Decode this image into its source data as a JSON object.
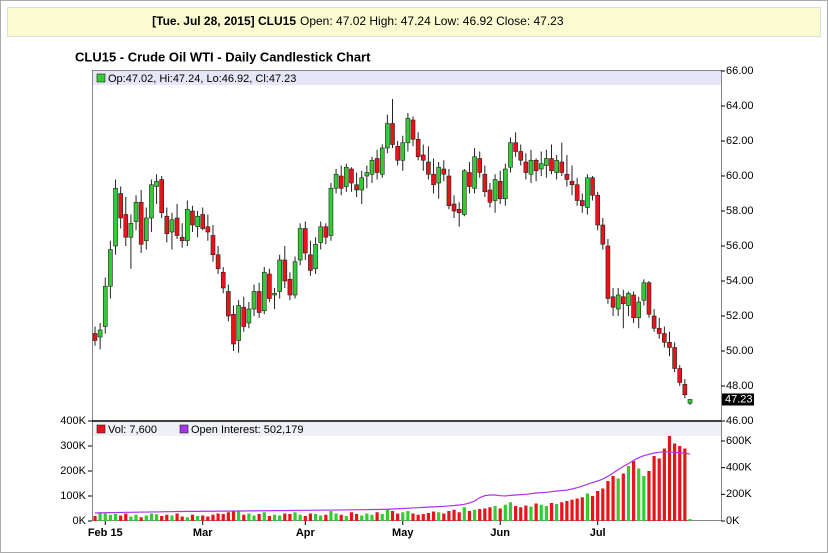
{
  "header": {
    "date_symbol": "[Tue. Jul 28, 2015] CLU15",
    "quote": "Open: 47.02 High: 47.24 Low: 46.92 Close: 47.23"
  },
  "chart_data": [
    {
      "type": "candlestick",
      "title": "CLU15 - Crude Oil WTI - Daily Candlestick Chart",
      "legend": "Op:47.02, Hi:47.24, Lo:46.92, Cl:47.23",
      "last_label": "47.23",
      "up_color": "#33cc33",
      "down_color": "#e8141a",
      "ylim": [
        46,
        66
      ],
      "yticks": [
        {
          "value": 46,
          "label": "46.00"
        },
        {
          "value": 48,
          "label": "48.00"
        },
        {
          "value": 50,
          "label": "50.00"
        },
        {
          "value": 52,
          "label": "52.00"
        },
        {
          "value": 54,
          "label": "54.00"
        },
        {
          "value": 56,
          "label": "56.00"
        },
        {
          "value": 58,
          "label": "58.00"
        },
        {
          "value": 60,
          "label": "60.00"
        },
        {
          "value": 62,
          "label": "62.00"
        },
        {
          "value": 64,
          "label": "64.00"
        },
        {
          "value": 66,
          "label": "66.00"
        }
      ],
      "candles": [
        [
          51.0,
          51.4,
          50.3,
          50.6
        ],
        [
          50.8,
          51.6,
          50.1,
          51.2
        ],
        [
          51.4,
          54.2,
          51.0,
          53.7
        ],
        [
          53.7,
          56.3,
          53.0,
          55.8
        ],
        [
          56.0,
          59.8,
          55.5,
          59.3
        ],
        [
          59.0,
          59.4,
          57.0,
          57.6
        ],
        [
          57.8,
          58.8,
          56.0,
          56.5
        ],
        [
          56.5,
          57.8,
          54.7,
          57.3
        ],
        [
          57.4,
          58.9,
          56.9,
          58.5
        ],
        [
          58.5,
          59.2,
          55.6,
          56.1
        ],
        [
          56.3,
          58.2,
          55.8,
          57.6
        ],
        [
          57.6,
          59.8,
          56.8,
          59.5
        ],
        [
          59.4,
          60.1,
          58.4,
          59.7
        ],
        [
          59.8,
          60.0,
          57.6,
          57.9
        ],
        [
          57.7,
          58.2,
          56.2,
          56.7
        ],
        [
          56.8,
          57.9,
          55.8,
          57.5
        ],
        [
          57.6,
          58.4,
          56.4,
          56.6
        ],
        [
          56.5,
          57.3,
          55.9,
          56.3
        ],
        [
          56.3,
          58.6,
          56.0,
          58.1
        ],
        [
          58.0,
          58.3,
          56.8,
          57.2
        ],
        [
          57.1,
          58.0,
          56.5,
          57.7
        ],
        [
          57.8,
          58.2,
          56.9,
          57.0
        ],
        [
          57.1,
          57.8,
          56.3,
          56.8
        ],
        [
          56.6,
          57.2,
          55.1,
          55.5
        ],
        [
          55.5,
          56.0,
          54.4,
          54.7
        ],
        [
          54.5,
          54.8,
          53.3,
          53.6
        ],
        [
          53.4,
          53.8,
          51.7,
          52.0
        ],
        [
          52.1,
          52.6,
          50.0,
          50.4
        ],
        [
          50.6,
          52.9,
          49.9,
          52.6
        ],
        [
          52.5,
          53.1,
          51.1,
          51.4
        ],
        [
          51.6,
          52.8,
          51.3,
          52.4
        ],
        [
          52.4,
          53.8,
          52.0,
          53.4
        ],
        [
          53.4,
          53.9,
          51.9,
          52.2
        ],
        [
          52.3,
          54.8,
          52.1,
          54.5
        ],
        [
          54.4,
          54.7,
          52.8,
          53.0
        ],
        [
          53.2,
          53.6,
          52.4,
          53.3
        ],
        [
          53.4,
          55.5,
          53.0,
          55.2
        ],
        [
          55.2,
          56.0,
          53.6,
          54.0
        ],
        [
          54.1,
          54.5,
          52.9,
          53.2
        ],
        [
          53.2,
          55.4,
          53.0,
          55.1
        ],
        [
          55.2,
          57.3,
          54.9,
          57.0
        ],
        [
          57.0,
          57.4,
          55.2,
          55.6
        ],
        [
          55.5,
          56.3,
          54.3,
          54.6
        ],
        [
          54.7,
          56.5,
          54.4,
          56.1
        ],
        [
          56.2,
          57.4,
          55.8,
          57.1
        ],
        [
          57.1,
          57.3,
          56.1,
          56.5
        ],
        [
          56.6,
          59.6,
          56.3,
          59.3
        ],
        [
          59.3,
          60.4,
          59.0,
          60.1
        ],
        [
          60.0,
          60.6,
          58.9,
          59.3
        ],
        [
          59.4,
          60.7,
          59.1,
          60.5
        ],
        [
          60.4,
          60.5,
          59.1,
          59.6
        ],
        [
          59.5,
          60.2,
          58.8,
          59.2
        ],
        [
          59.2,
          60.3,
          58.4,
          59.9
        ],
        [
          60.0,
          60.6,
          59.3,
          60.2
        ],
        [
          60.1,
          61.1,
          59.6,
          60.9
        ],
        [
          61.0,
          61.5,
          59.8,
          60.2
        ],
        [
          60.1,
          61.8,
          59.9,
          61.6
        ],
        [
          61.6,
          63.5,
          61.3,
          63.0
        ],
        [
          63.0,
          64.4,
          61.6,
          61.8
        ],
        [
          61.7,
          62.0,
          60.6,
          60.9
        ],
        [
          60.9,
          62.3,
          60.3,
          61.9
        ],
        [
          61.9,
          63.6,
          61.4,
          63.3
        ],
        [
          63.2,
          63.4,
          61.7,
          62.1
        ],
        [
          62.1,
          62.5,
          60.9,
          61.1
        ],
        [
          61.2,
          61.8,
          60.3,
          60.9
        ],
        [
          60.8,
          61.7,
          59.8,
          60.1
        ],
        [
          60.1,
          61.0,
          59.0,
          59.5
        ],
        [
          59.6,
          60.8,
          58.7,
          60.5
        ],
        [
          60.4,
          60.9,
          59.7,
          60.1
        ],
        [
          60.0,
          60.4,
          58.1,
          58.3
        ],
        [
          58.4,
          58.9,
          57.6,
          58.0
        ],
        [
          58.1,
          58.5,
          57.1,
          57.9
        ],
        [
          57.8,
          60.4,
          57.7,
          60.3
        ],
        [
          60.2,
          60.8,
          59.0,
          59.4
        ],
        [
          59.3,
          61.6,
          59.0,
          61.1
        ],
        [
          61.0,
          61.4,
          59.9,
          60.2
        ],
        [
          60.1,
          60.6,
          58.8,
          59.1
        ],
        [
          59.2,
          59.6,
          58.2,
          58.5
        ],
        [
          58.6,
          60.1,
          57.9,
          59.8
        ],
        [
          59.7,
          60.3,
          58.4,
          58.7
        ],
        [
          58.7,
          60.7,
          58.3,
          60.4
        ],
        [
          60.5,
          62.2,
          60.2,
          61.9
        ],
        [
          61.9,
          62.5,
          61.1,
          61.4
        ],
        [
          61.4,
          61.8,
          60.6,
          60.9
        ],
        [
          60.8,
          61.3,
          59.8,
          60.2
        ],
        [
          60.1,
          61.5,
          59.6,
          60.9
        ],
        [
          60.9,
          61.0,
          59.7,
          60.3
        ],
        [
          60.4,
          61.4,
          60.0,
          60.7
        ],
        [
          60.6,
          61.5,
          59.9,
          61.0
        ],
        [
          61.0,
          61.8,
          60.1,
          60.3
        ],
        [
          60.2,
          61.2,
          59.8,
          60.9
        ],
        [
          60.8,
          61.9,
          60.0,
          60.2
        ],
        [
          60.1,
          61.2,
          59.4,
          59.8
        ],
        [
          59.7,
          60.6,
          58.9,
          59.5
        ],
        [
          59.5,
          59.9,
          58.3,
          58.6
        ],
        [
          58.6,
          59.0,
          57.9,
          58.3
        ],
        [
          58.2,
          60.1,
          57.8,
          59.9
        ],
        [
          59.9,
          60.0,
          58.6,
          58.9
        ],
        [
          58.9,
          59.1,
          56.9,
          57.2
        ],
        [
          57.2,
          57.6,
          55.8,
          56.1
        ],
        [
          56.0,
          56.4,
          52.7,
          53.0
        ],
        [
          53.1,
          53.6,
          52.0,
          52.5
        ],
        [
          52.4,
          53.6,
          52.0,
          53.2
        ],
        [
          53.1,
          53.5,
          51.3,
          52.7
        ],
        [
          52.6,
          53.4,
          52.0,
          53.3
        ],
        [
          53.2,
          53.4,
          51.6,
          51.9
        ],
        [
          51.9,
          53.1,
          51.3,
          52.8
        ],
        [
          52.9,
          54.1,
          52.6,
          53.9
        ],
        [
          53.9,
          54.0,
          51.9,
          52.1
        ],
        [
          52.0,
          52.4,
          51.1,
          51.3
        ],
        [
          51.3,
          51.9,
          50.7,
          51.0
        ],
        [
          51.0,
          51.4,
          50.2,
          50.5
        ],
        [
          50.5,
          51.1,
          49.7,
          50.2
        ],
        [
          50.2,
          50.5,
          48.8,
          49.0
        ],
        [
          49.0,
          49.2,
          48.0,
          48.2
        ],
        [
          48.1,
          48.4,
          47.3,
          47.5
        ],
        [
          47.02,
          47.24,
          46.92,
          47.23
        ]
      ],
      "xticks": [
        {
          "value": 2,
          "label": "Feb 15"
        },
        {
          "value": 21,
          "label": "Mar"
        },
        {
          "value": 41,
          "label": "Apr"
        },
        {
          "value": 60,
          "label": "May"
        },
        {
          "value": 79,
          "label": "Jun"
        },
        {
          "value": 98,
          "label": "Jul"
        }
      ]
    },
    {
      "type": "volume",
      "ylim": [
        0,
        400000
      ],
      "yticks": [
        {
          "value": 0,
          "label": "0K"
        },
        {
          "value": 100000,
          "label": "100K"
        },
        {
          "value": 200000,
          "label": "200K"
        },
        {
          "value": 300000,
          "label": "300K"
        },
        {
          "value": 400000,
          "label": "400K"
        }
      ],
      "y2lim": [
        0,
        750000
      ],
      "y2ticks": [
        {
          "value": 0,
          "label": "0K"
        },
        {
          "value": 200000,
          "label": "200K"
        },
        {
          "value": 400000,
          "label": "400K"
        },
        {
          "value": 600000,
          "label": "600K"
        }
      ],
      "series": [
        {
          "name": "Vol: 7,600",
          "color": "#e8141a",
          "values": [
            20000,
            35000,
            30000,
            25000,
            28000,
            22000,
            30000,
            18000,
            25000,
            15000,
            22000,
            30000,
            27000,
            20000,
            25000,
            22000,
            30000,
            18000,
            15000,
            25000,
            20000,
            22000,
            18000,
            25000,
            30000,
            28000,
            35000,
            40000,
            38000,
            25000,
            30000,
            22000,
            28000,
            35000,
            20000,
            25000,
            22000,
            30000,
            28000,
            35000,
            25000,
            20000,
            30000,
            28000,
            22000,
            25000,
            40000,
            30000,
            25000,
            20000,
            35000,
            28000,
            22000,
            30000,
            25000,
            35000,
            28000,
            45000,
            40000,
            30000,
            35000,
            40000,
            30000,
            25000,
            28000,
            32000,
            38000,
            35000,
            30000,
            40000,
            45000,
            35000,
            55000,
            40000,
            45000,
            48000,
            50000,
            55000,
            60000,
            50000,
            65000,
            75000,
            60000,
            55000,
            62000,
            58000,
            70000,
            65000,
            60000,
            72000,
            68000,
            75000,
            80000,
            85000,
            90000,
            95000,
            110000,
            100000,
            120000,
            130000,
            160000,
            180000,
            170000,
            190000,
            220000,
            240000,
            210000,
            180000,
            200000,
            260000,
            250000,
            290000,
            340000,
            310000,
            300000,
            290000,
            7600
          ]
        },
        {
          "name": "Open Interest: 502,179",
          "color": "#aa33ee",
          "axis": "y2",
          "values": [
            60000,
            61000,
            62000,
            63000,
            63000,
            64000,
            65000,
            65000,
            66000,
            67000,
            67000,
            68000,
            68000,
            69000,
            70000,
            70000,
            71000,
            71000,
            72000,
            72000,
            72000,
            73000,
            73000,
            73000,
            74000,
            74000,
            74000,
            75000,
            75000,
            75000,
            76000,
            76000,
            77000,
            77000,
            77000,
            78000,
            78000,
            78000,
            79000,
            79000,
            80000,
            80000,
            80000,
            81000,
            81000,
            82000,
            82000,
            82000,
            83000,
            83000,
            84000,
            84000,
            85000,
            85000,
            86000,
            86000,
            87000,
            88000,
            90000,
            92000,
            94000,
            96000,
            98000,
            100000,
            102000,
            104000,
            106000,
            108000,
            110000,
            113000,
            116000,
            120000,
            125000,
            135000,
            150000,
            175000,
            190000,
            195000,
            195000,
            190000,
            188000,
            192000,
            195000,
            198000,
            200000,
            205000,
            210000,
            212000,
            215000,
            220000,
            225000,
            228000,
            232000,
            240000,
            250000,
            262000,
            275000,
            288000,
            300000,
            315000,
            335000,
            360000,
            385000,
            410000,
            430000,
            455000,
            475000,
            490000,
            500000,
            510000,
            515000,
            520000,
            518000,
            515000,
            512000,
            508000,
            502179
          ]
        }
      ]
    }
  ]
}
